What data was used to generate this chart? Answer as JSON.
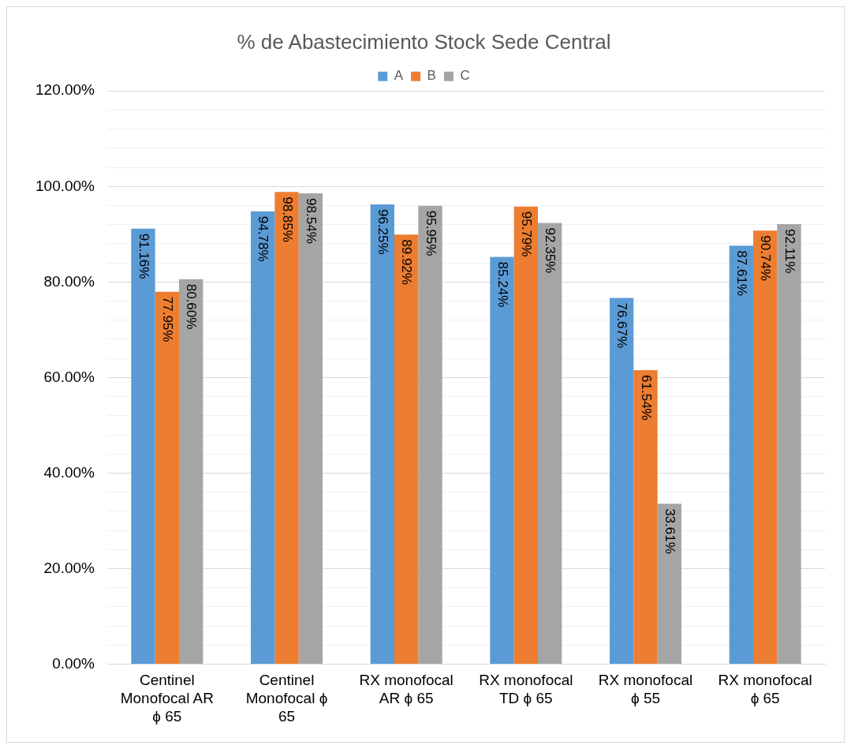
{
  "chart_data": {
    "type": "bar",
    "title": "% de Abastecimiento Stock Sede Central",
    "categories": [
      "Centinel Monofocal AR ϕ 65",
      "Centinel Monofocal ϕ 65",
      "RX monofocal AR ϕ 65",
      "RX monofocal TD ϕ 65",
      "RX monofocal ϕ 55",
      "RX monofocal ϕ 65"
    ],
    "series": [
      {
        "name": "A",
        "color": "#5b9bd5",
        "values": [
          91.16,
          94.78,
          96.25,
          85.24,
          76.67,
          87.61
        ],
        "value_labels": [
          "91.16%",
          "94.78%",
          "96.25%",
          "85.24%",
          "76.67%",
          "87.61%"
        ]
      },
      {
        "name": "B",
        "color": "#ed7d31",
        "values": [
          77.95,
          98.85,
          89.92,
          95.79,
          61.54,
          90.74
        ],
        "value_labels": [
          "77.95%",
          "98.85%",
          "89.92%",
          "95.79%",
          "61.54%",
          "90.74%"
        ]
      },
      {
        "name": "C",
        "color": "#a5a5a5",
        "values": [
          80.6,
          98.54,
          95.95,
          92.35,
          33.61,
          92.11
        ],
        "value_labels": [
          "80.60%",
          "98.54%",
          "95.95%",
          "92.35%",
          "33.61%",
          "92.11%"
        ]
      }
    ],
    "ylim": [
      0,
      120
    ],
    "yticks": [
      {
        "value": 0,
        "label": "0.00%"
      },
      {
        "value": 4,
        "label": null
      },
      {
        "value": 8,
        "label": null
      },
      {
        "value": 12,
        "label": null
      },
      {
        "value": 16,
        "label": null
      },
      {
        "value": 20,
        "label": "20.00%"
      },
      {
        "value": 24,
        "label": null
      },
      {
        "value": 28,
        "label": null
      },
      {
        "value": 32,
        "label": null
      },
      {
        "value": 36,
        "label": null
      },
      {
        "value": 40,
        "label": "40.00%"
      },
      {
        "value": 44,
        "label": null
      },
      {
        "value": 48,
        "label": null
      },
      {
        "value": 52,
        "label": null
      },
      {
        "value": 56,
        "label": null
      },
      {
        "value": 60,
        "label": "60.00%"
      },
      {
        "value": 64,
        "label": null
      },
      {
        "value": 68,
        "label": null
      },
      {
        "value": 72,
        "label": null
      },
      {
        "value": 76,
        "label": null
      },
      {
        "value": 80,
        "label": "80.00%"
      },
      {
        "value": 84,
        "label": null
      },
      {
        "value": 88,
        "label": null
      },
      {
        "value": 92,
        "label": null
      },
      {
        "value": 96,
        "label": null
      },
      {
        "value": 100,
        "label": "100.00%"
      },
      {
        "value": 104,
        "label": null
      },
      {
        "value": 108,
        "label": null
      },
      {
        "value": 112,
        "label": null
      },
      {
        "value": 116,
        "label": null
      },
      {
        "value": 120,
        "label": "120.00%"
      }
    ],
    "grid": "y",
    "legend": "top"
  }
}
